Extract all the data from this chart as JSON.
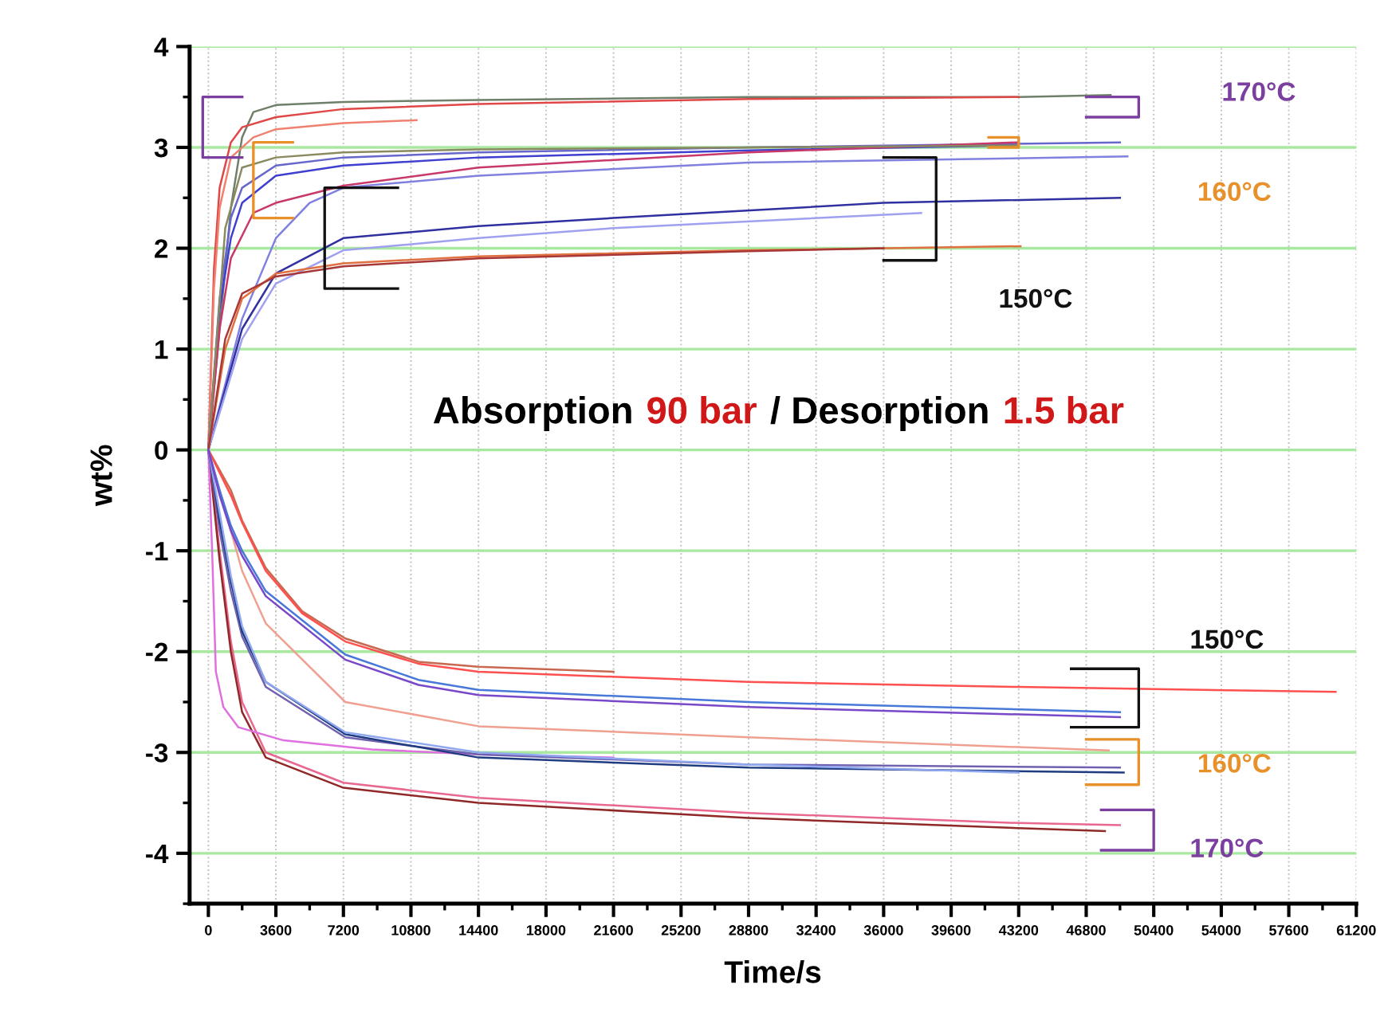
{
  "chart_data": {
    "type": "line",
    "xlabel": "Time/s",
    "ylabel": "wt%",
    "annotations": [
      "Absorption",
      "90 bar",
      "/ Desorption",
      "1.5 bar",
      "170°C",
      "160°C",
      "150°C",
      "150°C",
      "160°C",
      "170°C"
    ],
    "xlim": [
      -1000,
      61200
    ],
    "ylim": [
      -4.5,
      4
    ],
    "xticks": [
      0,
      3600,
      7200,
      10800,
      14400,
      18000,
      21600,
      25200,
      28800,
      32400,
      36000,
      39600,
      43200,
      46800,
      50400,
      54000,
      57600,
      61200
    ],
    "yticks": [
      -4,
      -3,
      -2,
      -1,
      0,
      1,
      2,
      3,
      4
    ],
    "grid": true,
    "legend": false,
    "marker": "none",
    "line_style": "solid",
    "series": [
      {
        "color": "#6f7f6a",
        "x": [
          0,
          600,
          1200,
          1800,
          2400,
          3600,
          7200,
          14400,
          28800,
          43200,
          48100
        ],
        "values": [
          0,
          1.2,
          2.4,
          3.1,
          3.35,
          3.42,
          3.45,
          3.47,
          3.5,
          3.5,
          3.52
        ]
      },
      {
        "color": "#e04848",
        "x": [
          0,
          300,
          600,
          1200,
          1800,
          3600,
          7200,
          14400,
          28800,
          43200
        ],
        "values": [
          0,
          1.8,
          2.6,
          3.05,
          3.2,
          3.3,
          3.38,
          3.43,
          3.48,
          3.5
        ]
      },
      {
        "color": "#f08070",
        "x": [
          0,
          300,
          600,
          1200,
          2400,
          3600,
          7200,
          11100
        ],
        "values": [
          0,
          1.6,
          2.4,
          2.9,
          3.1,
          3.18,
          3.24,
          3.27
        ]
      },
      {
        "color": "#6666cc",
        "x": [
          0,
          600,
          1200,
          1800,
          3600,
          7200,
          14400,
          28800,
          48600
        ],
        "values": [
          0,
          1.5,
          2.3,
          2.6,
          2.82,
          2.9,
          2.95,
          3.0,
          3.05
        ]
      },
      {
        "color": "#4040d0",
        "x": [
          0,
          600,
          1200,
          1800,
          3600,
          7200,
          14400,
          28800,
          43200
        ],
        "values": [
          0,
          1.4,
          2.1,
          2.45,
          2.72,
          2.82,
          2.9,
          2.97,
          3.02
        ]
      },
      {
        "color": "#c8386a",
        "x": [
          0,
          600,
          1200,
          2400,
          3600,
          7200,
          14400,
          28800,
          43200
        ],
        "values": [
          0,
          1.2,
          1.9,
          2.35,
          2.45,
          2.62,
          2.8,
          2.95,
          3.05
        ]
      },
      {
        "color": "#8a8a60",
        "x": [
          0,
          900,
          1800,
          3600,
          7200,
          14400,
          28800,
          43200
        ],
        "values": [
          0,
          2.2,
          2.8,
          2.9,
          2.95,
          2.98,
          3.0,
          3.02
        ]
      },
      {
        "color": "#8080e0",
        "x": [
          0,
          1800,
          3600,
          5400,
          7200,
          14400,
          28800,
          49000
        ],
        "values": [
          0,
          1.3,
          2.1,
          2.45,
          2.6,
          2.72,
          2.85,
          2.91
        ]
      },
      {
        "color": "#3030a0",
        "x": [
          0,
          1800,
          3600,
          7200,
          14400,
          21600,
          36000,
          48600
        ],
        "values": [
          0,
          1.2,
          1.75,
          2.1,
          2.22,
          2.3,
          2.45,
          2.5
        ]
      },
      {
        "color": "#a0a0f0",
        "x": [
          0,
          1800,
          3600,
          7200,
          14400,
          21600,
          38000
        ],
        "values": [
          0,
          1.1,
          1.65,
          1.98,
          2.1,
          2.2,
          2.35
        ]
      },
      {
        "color": "#e07040",
        "x": [
          0,
          900,
          1800,
          3600,
          7200,
          14400,
          28800,
          43300
        ],
        "values": [
          0,
          1.0,
          1.5,
          1.75,
          1.85,
          1.92,
          1.98,
          2.02
        ]
      },
      {
        "color": "#a83838",
        "x": [
          0,
          900,
          1800,
          3600,
          7200,
          14400,
          28800,
          36000
        ],
        "values": [
          0,
          1.1,
          1.55,
          1.72,
          1.82,
          1.9,
          1.97,
          2.0
        ]
      },
      {
        "color": "#e86890",
        "x": [
          0,
          600,
          1200,
          1800,
          3060,
          7200,
          14400,
          28800,
          43200,
          48600
        ],
        "values": [
          0,
          -1.0,
          -1.9,
          -2.5,
          -3.0,
          -3.3,
          -3.45,
          -3.6,
          -3.7,
          -3.72
        ]
      },
      {
        "color": "#902828",
        "x": [
          0,
          600,
          1200,
          1800,
          3060,
          7200,
          14400,
          28800,
          43200,
          47800
        ],
        "values": [
          0,
          -1.1,
          -2.0,
          -2.6,
          -3.05,
          -3.35,
          -3.5,
          -3.65,
          -3.75,
          -3.78
        ]
      },
      {
        "color": "#e070e0",
        "x": [
          0,
          200,
          400,
          800,
          1600,
          4000,
          8700,
          14400,
          21600
        ],
        "values": [
          0,
          -1.0,
          -2.2,
          -2.55,
          -2.75,
          -2.88,
          -2.97,
          -3.02,
          -3.05
        ]
      },
      {
        "color": "#7060b0",
        "x": [
          0,
          600,
          1200,
          1800,
          3060,
          7300,
          14400,
          28800,
          48600
        ],
        "values": [
          0,
          -0.8,
          -1.4,
          -1.85,
          -2.35,
          -2.85,
          -3.02,
          -3.12,
          -3.15
        ]
      },
      {
        "color": "#203c80",
        "x": [
          0,
          600,
          1200,
          1800,
          3060,
          7300,
          14400,
          28800,
          48800
        ],
        "values": [
          0,
          -0.7,
          -1.3,
          -1.8,
          -2.3,
          -2.82,
          -3.05,
          -3.15,
          -3.2
        ]
      },
      {
        "color": "#90a8f0",
        "x": [
          0,
          1200,
          1800,
          3060,
          7300,
          14400,
          28800,
          43200
        ],
        "values": [
          0,
          -1.25,
          -1.75,
          -2.3,
          -2.8,
          -3.0,
          -3.12,
          -3.2
        ]
      },
      {
        "color": "#f0a090",
        "x": [
          0,
          600,
          1200,
          1800,
          3060,
          7300,
          14400,
          28800,
          48000
        ],
        "values": [
          0,
          -0.4,
          -0.8,
          -1.2,
          -1.72,
          -2.5,
          -2.74,
          -2.85,
          -2.98
        ]
      },
      {
        "color": "#c86850",
        "x": [
          0,
          1200,
          1800,
          3060,
          5000,
          7300,
          11200,
          14400,
          21600
        ],
        "values": [
          0,
          -0.4,
          -0.7,
          -1.17,
          -1.6,
          -1.87,
          -2.1,
          -2.15,
          -2.2
        ]
      },
      {
        "color": "#ff5050",
        "x": [
          0,
          1200,
          1800,
          3060,
          5000,
          7300,
          11200,
          14400,
          28800,
          43200,
          60100
        ],
        "values": [
          0,
          -0.45,
          -0.72,
          -1.2,
          -1.62,
          -1.9,
          -2.12,
          -2.2,
          -2.3,
          -2.35,
          -2.4
        ]
      },
      {
        "color": "#4878d8",
        "x": [
          0,
          600,
          1200,
          1800,
          3060,
          7300,
          11200,
          14400,
          28800,
          48600
        ],
        "values": [
          0,
          -0.4,
          -0.75,
          -1.0,
          -1.4,
          -2.03,
          -2.28,
          -2.38,
          -2.5,
          -2.6
        ]
      },
      {
        "color": "#7848c8",
        "x": [
          0,
          600,
          1200,
          1800,
          3060,
          7300,
          11200,
          14400,
          28800,
          48600
        ],
        "values": [
          0,
          -0.45,
          -0.8,
          -1.05,
          -1.45,
          -2.08,
          -2.33,
          -2.43,
          -2.55,
          -2.65
        ]
      }
    ]
  }
}
